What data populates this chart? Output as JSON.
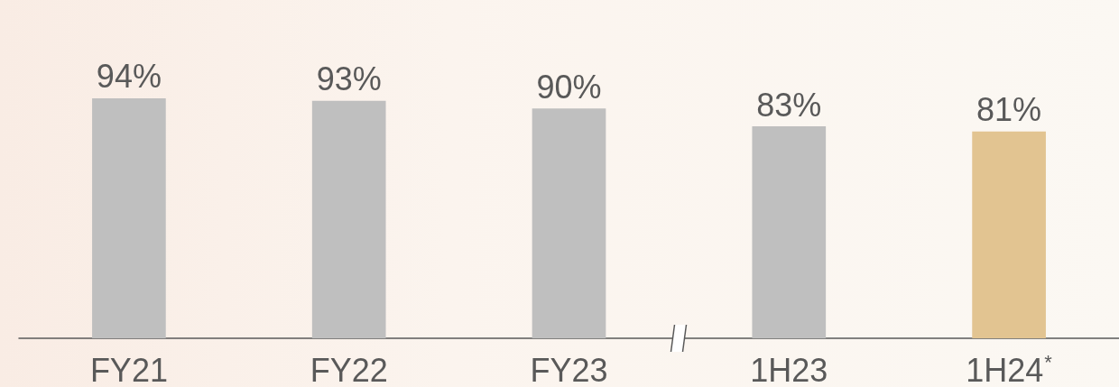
{
  "chart_data": {
    "type": "bar",
    "categories": [
      "FY21",
      "FY22",
      "FY23",
      "1H23",
      "1H24$^{*}$"
    ],
    "values": [
      94,
      93,
      90,
      83,
      81
    ],
    "value_labels": [
      "94%",
      "93%",
      "90%",
      "83%",
      "81%"
    ],
    "colors": [
      "#bfbfbf",
      "#bfbfbf",
      "#bfbfbf",
      "#bfbfbf",
      "#e2c491"
    ],
    "tick_labels": "x",
    "grid": false
  }
}
